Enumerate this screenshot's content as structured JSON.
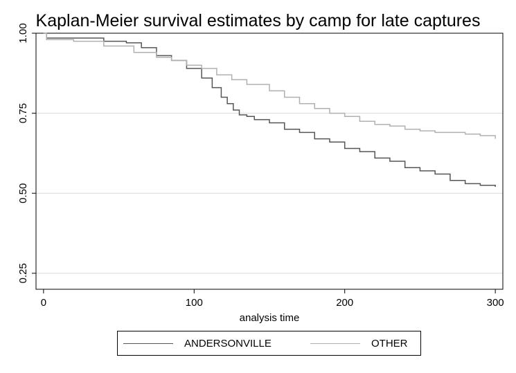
{
  "chart_data": {
    "type": "line",
    "step": true,
    "title": "Kaplan-Meier survival estimates by camp for late captures",
    "xlabel": "analysis time",
    "ylabel": "",
    "xlim": [
      -5,
      305
    ],
    "ylim": [
      0.2,
      1.0
    ],
    "x_ticks": [
      0,
      100,
      200,
      300
    ],
    "x_tick_labels": [
      "0",
      "100",
      "200",
      "300"
    ],
    "y_ticks": [
      0.25,
      0.5,
      0.75,
      1.0
    ],
    "y_tick_labels": [
      "0.25",
      "0.50",
      "0.75",
      "1.00"
    ],
    "grid": "horizontal",
    "legend_position": "bottom",
    "series": [
      {
        "name": "ANDERSONVILLE",
        "color": "#555555",
        "x": [
          0,
          2,
          25,
          40,
          55,
          65,
          75,
          85,
          95,
          105,
          112,
          118,
          122,
          126,
          130,
          135,
          140,
          150,
          160,
          170,
          180,
          190,
          200,
          210,
          220,
          230,
          240,
          250,
          260,
          270,
          280,
          290,
          300
        ],
        "y": [
          1.0,
          0.985,
          0.985,
          0.975,
          0.97,
          0.955,
          0.93,
          0.915,
          0.89,
          0.86,
          0.83,
          0.8,
          0.78,
          0.76,
          0.745,
          0.74,
          0.73,
          0.72,
          0.7,
          0.69,
          0.67,
          0.66,
          0.64,
          0.63,
          0.61,
          0.6,
          0.58,
          0.57,
          0.56,
          0.54,
          0.53,
          0.525,
          0.52
        ]
      },
      {
        "name": "OTHER",
        "color": "#b0b0b0",
        "x": [
          0,
          2,
          20,
          40,
          60,
          75,
          85,
          95,
          105,
          115,
          125,
          135,
          150,
          160,
          170,
          180,
          190,
          200,
          210,
          220,
          230,
          240,
          250,
          260,
          270,
          280,
          290,
          300
        ],
        "y": [
          1.0,
          0.98,
          0.975,
          0.96,
          0.94,
          0.925,
          0.915,
          0.9,
          0.89,
          0.87,
          0.855,
          0.84,
          0.82,
          0.8,
          0.78,
          0.765,
          0.75,
          0.74,
          0.725,
          0.715,
          0.71,
          0.7,
          0.695,
          0.69,
          0.69,
          0.685,
          0.68,
          0.67
        ]
      }
    ]
  }
}
